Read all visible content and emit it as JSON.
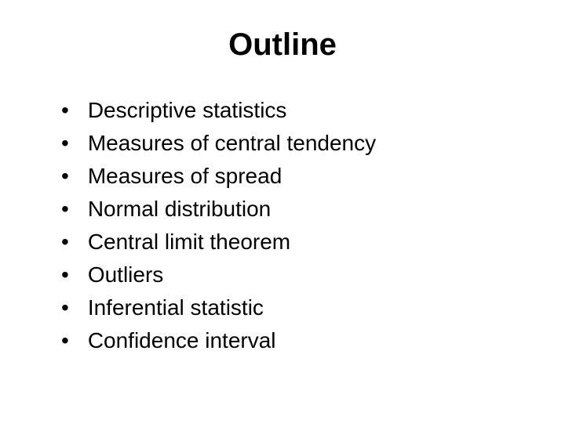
{
  "slide": {
    "title": "Outline",
    "bullets": [
      "Descriptive statistics",
      "Measures of central tendency",
      "Measures of spread",
      "Normal distribution",
      "Central limit theorem",
      "Outliers",
      "Inferential statistic",
      "Confidence interval"
    ],
    "bullet_marker": "•",
    "title_fontsize": 40,
    "body_fontsize": 28,
    "background_color": "#ffffff",
    "text_color": "#000000"
  }
}
